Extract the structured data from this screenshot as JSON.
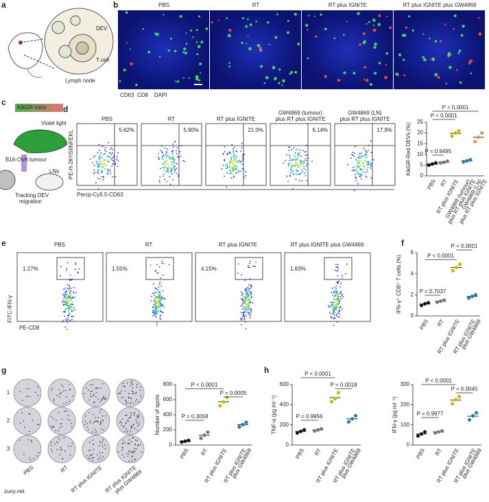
{
  "panel_labels": [
    "a",
    "b",
    "c",
    "d",
    "e",
    "f",
    "g",
    "h"
  ],
  "panel_a": {
    "texts": [
      "DEV",
      "T cell",
      "Lymph node"
    ]
  },
  "panel_b": {
    "titles": [
      "PBS",
      "RT",
      "RT plus IGNITE",
      "RT plus IGNITE plus GW4869"
    ],
    "legend": [
      "CD63",
      "CD8",
      "DAPI"
    ]
  },
  "panel_c": {
    "texts": [
      "KikGR mice",
      "Violet light",
      "B16-OVA tumour",
      "LNs",
      "Tracking DEV",
      "migration"
    ]
  },
  "panel_d": {
    "titles": [
      [
        "PBS"
      ],
      [
        "RT"
      ],
      [
        "RT plus IGNITE"
      ],
      [
        "GW4869 (tumour)",
        "plus RT plus IGNITE"
      ],
      [
        "GW4869 (LN)",
        "plus RT plus IGNITE"
      ]
    ],
    "percents": [
      "5.62%",
      "5.90%",
      "21.0%",
      "6.14%",
      "17.9%"
    ],
    "y_label": "PE-H-2Kᵇ/SIINFEKL",
    "x_label": "Percp-Cy5.5-CD63"
  },
  "panel_e": {
    "titles": [
      "PBS",
      "RT",
      "RT plus IGNITE",
      "RT plus IGNITE plus GW4869"
    ],
    "percents": [
      "1.27%",
      "1.55%",
      "4.15%",
      "1.83%"
    ],
    "y_label": "FITC-IFN-γ",
    "x_label": "PE-CD8"
  },
  "panel_g": {
    "rows": [
      "1",
      "2",
      "3"
    ],
    "columns": [
      [
        "PBS"
      ],
      [
        "RT"
      ],
      [
        "RT plus IGNITE"
      ],
      [
        "RT plus IGNITE",
        "plus GW4869"
      ]
    ]
  },
  "chart_data": [
    {
      "type": "dot",
      "y_label": "KikGR-Red DEVs (%)",
      "categories": [
        [
          "PBS"
        ],
        [
          "RT"
        ],
        [
          "RT plus IGNITE"
        ],
        [
          "GW4869 (tumour)",
          "plus RT plus IGNITE"
        ],
        [
          "GW4869 (LN)",
          "plus RT plus IGNITE"
        ]
      ],
      "points": [
        [
          5,
          5.5,
          6
        ],
        [
          6,
          6.3,
          6.8
        ],
        [
          18.5,
          20,
          21
        ],
        [
          6.5,
          7,
          7.5
        ],
        [
          16,
          18,
          20
        ]
      ],
      "means": [
        5.5,
        6.4,
        19.8,
        7,
        18
      ],
      "colors": [
        "#111111",
        "#777777",
        "#c9b800",
        "#1f7fa3",
        "#d8995a"
      ],
      "ylim": [
        0,
        25
      ],
      "yticks": [
        0,
        5,
        10,
        15,
        20,
        25
      ],
      "annotations": [
        "P < 0.0001",
        "P < 0.0001",
        "P = 0.9495"
      ]
    },
    {
      "type": "dot",
      "y_label": "IFN-γ⁺ CD8⁺ T cells (%)",
      "categories": [
        [
          "PBS"
        ],
        [
          "RT"
        ],
        [
          "RT plus IGNITE"
        ],
        [
          "RT plus IGNITE",
          "plus GW4869"
        ]
      ],
      "points": [
        [
          1.0,
          1.15,
          1.25
        ],
        [
          1.3,
          1.4,
          1.5
        ],
        [
          4.3,
          4.6,
          4.9
        ],
        [
          1.7,
          1.85,
          2.0
        ]
      ],
      "means": [
        1.13,
        1.4,
        4.6,
        1.85
      ],
      "colors": [
        "#111111",
        "#777777",
        "#c9b800",
        "#1f7fa3"
      ],
      "ylim": [
        0,
        6
      ],
      "yticks": [
        0,
        2,
        4,
        6
      ],
      "annotations": [
        "P = 0.7037",
        "P < 0.0001",
        "P < 0.0001"
      ]
    },
    {
      "type": "dot",
      "y_label": "Number of spots",
      "categories": [
        [
          "PBS"
        ],
        [
          "RT"
        ],
        [
          "RT plus IGNITE"
        ],
        [
          "RT plus IGNITE",
          "plus GW4869"
        ]
      ],
      "points": [
        [
          40,
          50,
          60
        ],
        [
          90,
          130,
          170
        ],
        [
          520,
          570,
          630
        ],
        [
          240,
          270,
          300
        ]
      ],
      "means": [
        50,
        130,
        573,
        270
      ],
      "colors": [
        "#111111",
        "#777777",
        "#c9b800",
        "#1f7fa3"
      ],
      "ylim": [
        0,
        800
      ],
      "yticks": [
        0,
        200,
        400,
        600,
        800
      ],
      "annotations": [
        "P = 0.3058",
        "P < 0.0001",
        "P = 0.0005"
      ]
    },
    {
      "type": "dot",
      "y_label": "TNF-α (pg ml⁻¹)",
      "categories": [
        [
          "PBS"
        ],
        [
          "RT"
        ],
        [
          "RT plus IGNITE"
        ],
        [
          "RT plus IGNITE",
          "plus GW4869"
        ]
      ],
      "points": [
        [
          120,
          135,
          150
        ],
        [
          140,
          150,
          160
        ],
        [
          430,
          460,
          520
        ],
        [
          230,
          260,
          290
        ]
      ],
      "means": [
        135,
        150,
        470,
        260
      ],
      "colors": [
        "#111111",
        "#777777",
        "#c9b800",
        "#1f7fa3"
      ],
      "ylim": [
        0,
        600
      ],
      "yticks": [
        0,
        200,
        400,
        600
      ],
      "annotations": [
        "P = 0.9956",
        "P < 0.0001",
        "P = 0.0018"
      ]
    },
    {
      "type": "dot",
      "y_label": "IFN-γ (pg ml⁻¹)",
      "categories": [
        [
          "PBS"
        ],
        [
          "RT"
        ],
        [
          "RT plus IGNITE"
        ],
        [
          "RT plus IGNITE",
          "plus GW4869"
        ]
      ],
      "points": [
        [
          45,
          55,
          65
        ],
        [
          60,
          65,
          70
        ],
        [
          205,
          225,
          240
        ],
        [
          125,
          145,
          160
        ]
      ],
      "means": [
        55,
        65,
        223,
        143
      ],
      "colors": [
        "#111111",
        "#777777",
        "#c9b800",
        "#1f7fa3"
      ],
      "ylim": [
        0,
        300
      ],
      "yticks": [
        0,
        100,
        200,
        300
      ],
      "annotations": [
        "P = 0.9977",
        "P < 0.0001",
        "P = 0.0045"
      ]
    }
  ],
  "watermark": "zuoy.net"
}
